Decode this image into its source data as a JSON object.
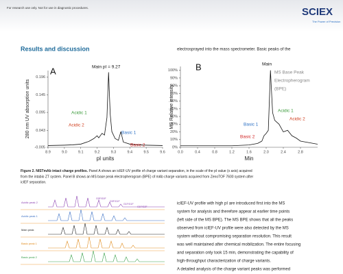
{
  "header": {
    "notice": "For research use only. Not for use in diagnostic procedures.",
    "logo": "SCIEX",
    "tagline": "The Power of Precision"
  },
  "section_title": "Results and discussion",
  "right_intro": "electrosprayed into the mass spectrometer. Basic peaks of the",
  "chart_data": [
    {
      "type": "line",
      "panel": "A",
      "xlabel": "pI units",
      "ylabel": "280 nm UV absorption units",
      "color": "#111111",
      "xlim": [
        8.9,
        9.6
      ],
      "ylim": [
        -0.005,
        0.215
      ],
      "xticks": [
        8.9,
        {
          "value": 9,
          "label": "9.0"
        },
        9.1,
        9.2,
        9.3,
        9.4,
        9.5,
        9.6
      ],
      "yticks": [
        -0.005,
        0.043,
        0.095,
        0.145,
        0.196
      ],
      "x": [
        8.9,
        9.0,
        9.05,
        9.1,
        9.15,
        9.18,
        9.2,
        9.21,
        9.23,
        9.245,
        9.26,
        9.27,
        9.28,
        9.29,
        9.31,
        9.33,
        9.345,
        9.36,
        9.4,
        9.45,
        9.5,
        9.6
      ],
      "values": [
        0.0,
        0.001,
        0.002,
        0.004,
        0.012,
        0.02,
        0.028,
        0.022,
        0.035,
        0.03,
        0.08,
        0.21,
        0.09,
        0.04,
        0.02,
        0.015,
        0.04,
        0.01,
        0.004,
        0.002,
        0.001,
        0.0
      ],
      "annotations": [
        {
          "text": "Main  pI = 9.27",
          "color": "#111111"
        },
        {
          "text": "Acidic 1",
          "color": "#3a9a3a"
        },
        {
          "text": "Acidic 2",
          "color": "#d04020"
        },
        {
          "text": "Basic 1",
          "color": "#2a6fc4"
        },
        {
          "text": "Basic 2",
          "color": "#d02020"
        }
      ]
    },
    {
      "type": "line",
      "panel": "B",
      "xlabel": "Min",
      "ylabel": "MS Relative intensity",
      "color": "#111111",
      "xlim": [
        0,
        3.2
      ],
      "ylim": [
        0,
        105
      ],
      "xticks": [
        {
          "value": 0,
          "label": "0.0"
        },
        0.4,
        0.8,
        1.2,
        1.6,
        {
          "value": 2,
          "label": "2.0"
        },
        2.4,
        2.8
      ],
      "yticks": [
        {
          "value": 0,
          "label": "0%"
        },
        {
          "value": 10,
          "label": "10%"
        },
        {
          "value": 20,
          "label": "20%"
        },
        {
          "value": 30,
          "label": "30%"
        },
        {
          "value": 40,
          "label": "40%"
        },
        {
          "value": 50,
          "label": "50%"
        },
        {
          "value": 60,
          "label": "60%"
        },
        {
          "value": 70,
          "label": "70%"
        },
        {
          "value": 80,
          "label": "80%"
        },
        {
          "value": 90,
          "label": "90%"
        },
        {
          "value": 100,
          "label": "100%"
        }
      ],
      "x": [
        0,
        0.8,
        1.2,
        1.6,
        1.8,
        1.9,
        1.95,
        2.0,
        2.05,
        2.1,
        2.15,
        2.2,
        2.3,
        2.4,
        2.5,
        2.6,
        2.7,
        2.8,
        3.0,
        3.2
      ],
      "values": [
        2,
        2,
        2,
        3,
        5,
        8,
        15,
        18,
        22,
        100,
        45,
        35,
        30,
        20,
        22,
        15,
        12,
        8,
        6,
        4
      ],
      "annotations": [
        {
          "text": "Main",
          "color": "#111111"
        },
        {
          "text": "MS Base Peak",
          "color": "#888888"
        },
        {
          "text": "Electropherogram",
          "color": "#888888"
        },
        {
          "text": "(BPE)",
          "color": "#888888"
        },
        {
          "text": "Acidic 1",
          "color": "#3a9a3a"
        },
        {
          "text": "Acidic 2",
          "color": "#d04020"
        },
        {
          "text": "Basic 1",
          "color": "#2a6fc4"
        },
        {
          "text": "Basic 2",
          "color": "#d02020"
        }
      ]
    }
  ],
  "caption": {
    "label": "Figure 2. NISTmAb intact charge profiles.",
    "lines": [
      " Panel A shows an icIEF-UV profile of charge variant separation, in the scale of the pI value (x axis) acquired",
      "from the intabio ZT system. Panel B shows an MS base peak electropherogram (BPE) of mAb charge variants acquired from ZenoTOF 7600 system after",
      "icIEF separation."
    ]
  },
  "figure3": {
    "rows": [
      "Acidic peak 2",
      "Acidic peak 1",
      "Main peak",
      "Basic peak 1",
      "Basic peak 2"
    ],
    "peaks": [
      "G0F/G0F",
      "G0F/G1F",
      "G1F/G1F",
      "G1F/G2F"
    ]
  },
  "body": [
    "icIEF-UV profile with high pI are introduced first into the MS",
    "system for analysis and therefore appear at earlier time points",
    "(left side of the MS BPE). The MS BPE shows that all the peaks",
    "observed from icIEF-UV profile were also detected by the MS",
    "system without compromising separation resolution. This result",
    "was well maintained after chemical mobilization. The entire focusing",
    "and separation only took 15 min, demonstrating the capability of",
    "high-throughput characterization of charge variants.",
    "A detailed analysis of the charge variant peaks was performed"
  ]
}
